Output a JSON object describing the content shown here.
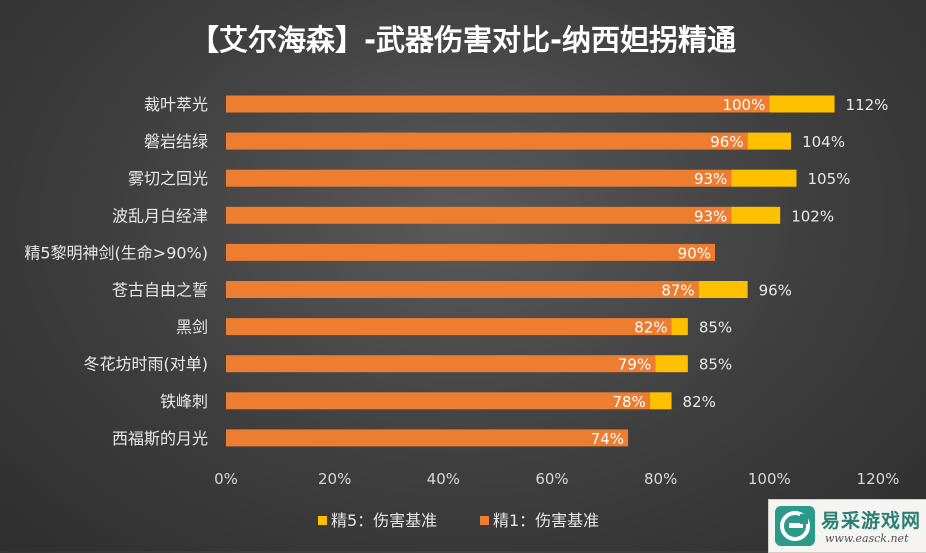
{
  "watermark": {
    "name": "易采游戏网",
    "url": "www.easck.net"
  },
  "chart_data": {
    "type": "bar",
    "orientation": "horizontal",
    "stacked": true,
    "title": "【艾尔海森】-武器伤害对比-纳西妲拐精通",
    "categories": [
      "裁叶萃光",
      "磐岩结绿",
      "雾切之回光",
      "波乱月白经津",
      "精5黎明神剑(生命>90%)",
      "苍古自由之誓",
      "黑剑",
      "冬花坊时雨(对单)",
      "铁峰刺",
      "西福斯的月光"
    ],
    "series": [
      {
        "name": "精1：伤害基准",
        "color": "#ed7d31",
        "values": [
          100,
          96,
          93,
          93,
          90,
          87,
          82,
          79,
          78,
          74
        ],
        "labels": [
          "100%",
          "96%",
          "93%",
          "93%",
          "90%",
          "87%",
          "82%",
          "79%",
          "78%",
          "74%"
        ]
      },
      {
        "name": "精5：伤害基准",
        "color": "#ffc000",
        "values": [
          12,
          8,
          12,
          9,
          0,
          9,
          3,
          6,
          4,
          0
        ],
        "labels": [
          "112%",
          "104%",
          "105%",
          "102%",
          "",
          "96%",
          "85%",
          "85%",
          "82%",
          ""
        ]
      }
    ],
    "xlim": [
      0,
      120
    ],
    "xticks": [
      "0%",
      "20%",
      "40%",
      "60%",
      "80%",
      "100%",
      "120%"
    ],
    "legend": {
      "position": "bottom",
      "entries": [
        "精5：伤害基准",
        "精1：伤害基准"
      ]
    },
    "grid": false
  }
}
